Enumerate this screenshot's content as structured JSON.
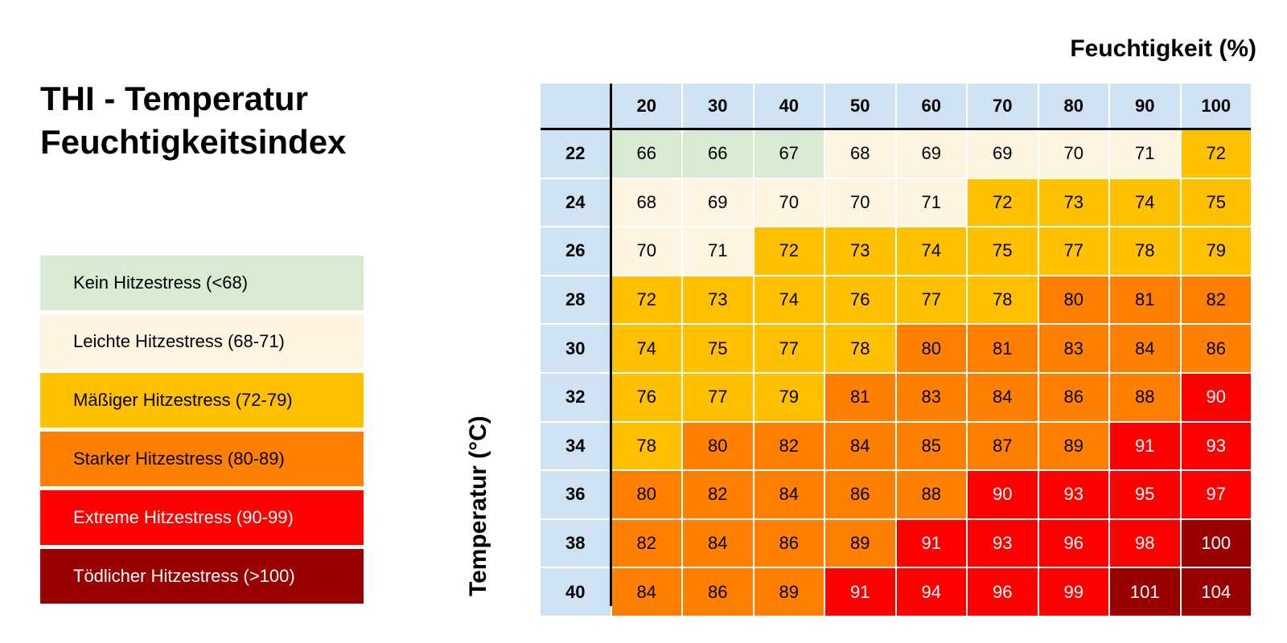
{
  "title_line1": "THI - Temperatur",
  "title_line2": "Feuchtigkeitsindex",
  "x_axis_label": "Feuchtigkeit (%)",
  "y_axis_label": "Temperatur (°C)",
  "legend": [
    {
      "label": "Kein Hitzestress (<68)",
      "color": "#d9ead3",
      "text_color": "#000000"
    },
    {
      "label": "Leichte Hitzestress (68-71)",
      "color": "#fdf5e1",
      "text_color": "#000000"
    },
    {
      "label": "Mäßiger Hitzestress (72-79)",
      "color": "#ffc000",
      "text_color": "#000000"
    },
    {
      "label": "Starker Hitzestress (80-89)",
      "color": "#ff8000",
      "text_color": "#000000"
    },
    {
      "label": "Extreme Hitzestress (90-99)",
      "color": "#ff0000",
      "text_color": "#ffffff"
    },
    {
      "label": "Tödlicher Hitzestress (>100)",
      "color": "#990000",
      "text_color": "#ffffff"
    }
  ],
  "chart_data": {
    "type": "heatmap",
    "title": "THI - Temperatur Feuchtigkeitsindex",
    "xlabel": "Feuchtigkeit (%)",
    "ylabel": "Temperatur (°C)",
    "x": [
      "20",
      "30",
      "40",
      "50",
      "60",
      "70",
      "80",
      "90",
      "100"
    ],
    "y": [
      "22",
      "24",
      "26",
      "28",
      "30",
      "32",
      "34",
      "36",
      "38",
      "40"
    ],
    "values": [
      [
        66,
        66,
        67,
        68,
        69,
        69,
        70,
        71,
        72
      ],
      [
        68,
        69,
        70,
        70,
        71,
        72,
        73,
        74,
        75
      ],
      [
        70,
        71,
        72,
        73,
        74,
        75,
        77,
        78,
        79
      ],
      [
        72,
        73,
        74,
        76,
        77,
        78,
        80,
        81,
        82
      ],
      [
        74,
        75,
        77,
        78,
        80,
        81,
        83,
        84,
        86
      ],
      [
        76,
        77,
        79,
        81,
        83,
        84,
        86,
        88,
        90
      ],
      [
        78,
        80,
        82,
        84,
        85,
        87,
        89,
        91,
        93
      ],
      [
        80,
        82,
        84,
        86,
        88,
        90,
        93,
        95,
        97
      ],
      [
        82,
        84,
        86,
        89,
        91,
        93,
        96,
        98,
        100
      ],
      [
        84,
        86,
        89,
        91,
        94,
        96,
        99,
        101,
        104
      ]
    ],
    "header_color": "#cfe2f3"
  }
}
